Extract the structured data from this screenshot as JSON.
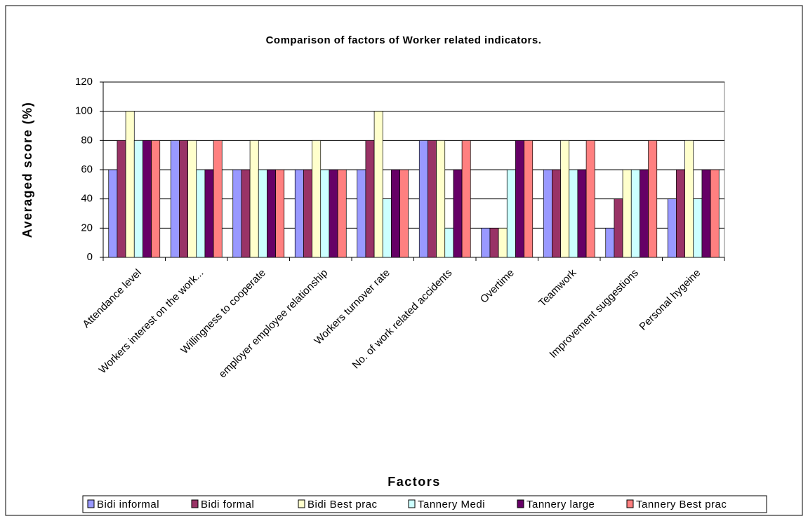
{
  "chart_data": {
    "type": "bar",
    "title": "Comparison of factors of Worker related indicators.",
    "x_label": "Factors",
    "y_label": "Averaged score (%)",
    "categories": [
      "Attendance level",
      "Workers interest on the work...",
      "Willingness to cooperate",
      "employer employee relationship",
      "Workers turnover rate",
      "No. of work related accidents",
      "Overtime",
      "Teamwork",
      "Improvement suggestions",
      "Personal hygeine"
    ],
    "series": [
      {
        "name": "Bidi informal",
        "color": "#9999ff",
        "values": [
          60,
          80,
          60,
          60,
          60,
          80,
          20,
          60,
          20,
          40
        ]
      },
      {
        "name": "Bidi formal",
        "color": "#993366",
        "values": [
          80,
          80,
          60,
          60,
          80,
          80,
          20,
          60,
          40,
          60
        ]
      },
      {
        "name": "Bidi Best prac",
        "color": "#ffffcc",
        "values": [
          100,
          80,
          80,
          80,
          100,
          80,
          20,
          80,
          60,
          80
        ]
      },
      {
        "name": "Tannery Medi",
        "color": "#ccffff",
        "values": [
          80,
          60,
          60,
          60,
          40,
          20,
          60,
          60,
          60,
          40
        ]
      },
      {
        "name": "Tannery large",
        "color": "#660066",
        "values": [
          80,
          60,
          60,
          60,
          60,
          60,
          80,
          60,
          60,
          60
        ]
      },
      {
        "name": "Tannery Best prac",
        "color": "#ff8080",
        "values": [
          80,
          80,
          60,
          60,
          60,
          80,
          80,
          80,
          80,
          60
        ]
      }
    ],
    "ylim": [
      0,
      120
    ],
    "yticks": [
      0,
      20,
      40,
      60,
      80,
      100,
      120
    ],
    "grid": true,
    "legend": "bottom"
  }
}
